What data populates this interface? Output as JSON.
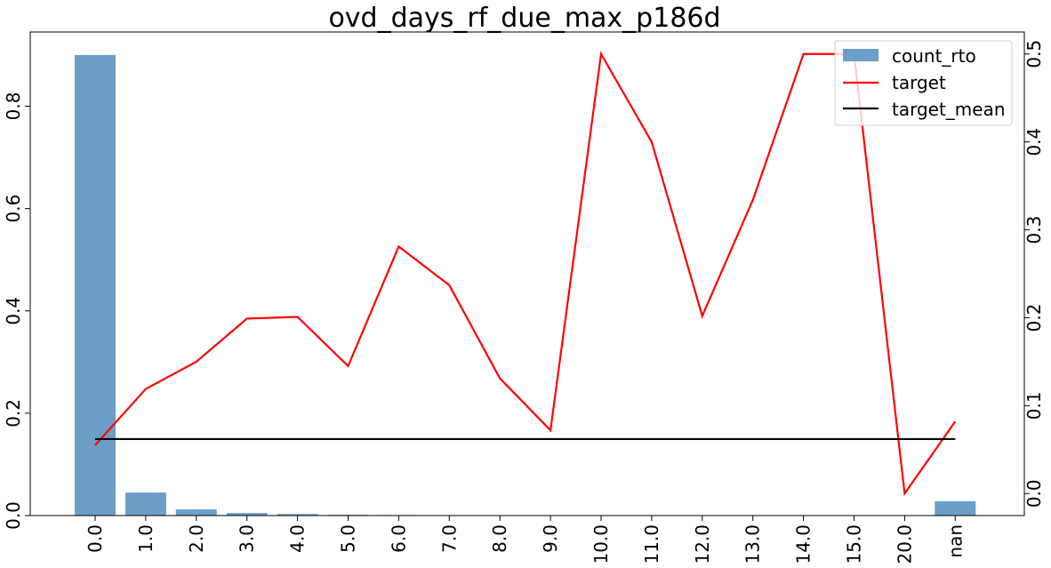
{
  "chart_data": {
    "type": "bar",
    "title": "ovd_days_rf_due_max_p186d",
    "categories": [
      "0.0",
      "1.0",
      "2.0",
      "3.0",
      "4.0",
      "5.0",
      "6.0",
      "7.0",
      "8.0",
      "9.0",
      "10.0",
      "11.0",
      "12.0",
      "13.0",
      "14.0",
      "15.0",
      "20.0",
      "nan"
    ],
    "series": [
      {
        "name": "count_rto",
        "kind": "bar",
        "axis": "left",
        "color": "#6b9ec8",
        "values": [
          0.9,
          0.045,
          0.012,
          0.005,
          0.003,
          0.0015,
          0.001,
          0.0008,
          0.0004,
          0.0003,
          0.0002,
          0.0002,
          0.0001,
          0.0001,
          0.0001,
          0.0001,
          0.0001,
          0.028
        ]
      },
      {
        "name": "target",
        "kind": "line",
        "axis": "right",
        "color": "#ff0000",
        "values": [
          0.055,
          0.119,
          0.15,
          0.199,
          0.201,
          0.145,
          0.281,
          0.237,
          0.131,
          0.072,
          0.5,
          0.4,
          0.202,
          0.334,
          0.5,
          0.5,
          0.0,
          0.082
        ]
      },
      {
        "name": "target_mean",
        "kind": "line",
        "axis": "right",
        "color": "#000000",
        "values": [
          0.062,
          0.062,
          0.062,
          0.062,
          0.062,
          0.062,
          0.062,
          0.062,
          0.062,
          0.062,
          0.062,
          0.062,
          0.062,
          0.062,
          0.062,
          0.062,
          0.062,
          0.062
        ]
      }
    ],
    "left_axis": {
      "ylim": [
        0.0,
        0.945
      ],
      "ticks": [
        0.0,
        0.2,
        0.4,
        0.6,
        0.8
      ],
      "tick_labels": [
        "0.0",
        "0.2",
        "0.4",
        "0.6",
        "0.8"
      ]
    },
    "right_axis": {
      "ylim": [
        -0.025,
        0.525
      ],
      "ticks": [
        0.0,
        0.1,
        0.2,
        0.3,
        0.4,
        0.5
      ],
      "tick_labels": [
        "0.0",
        "0.1",
        "0.2",
        "0.3",
        "0.4",
        "0.5"
      ]
    },
    "legend": {
      "position": "top-right",
      "labels": [
        "count_rto",
        "target",
        "target_mean"
      ]
    },
    "grid": false
  }
}
